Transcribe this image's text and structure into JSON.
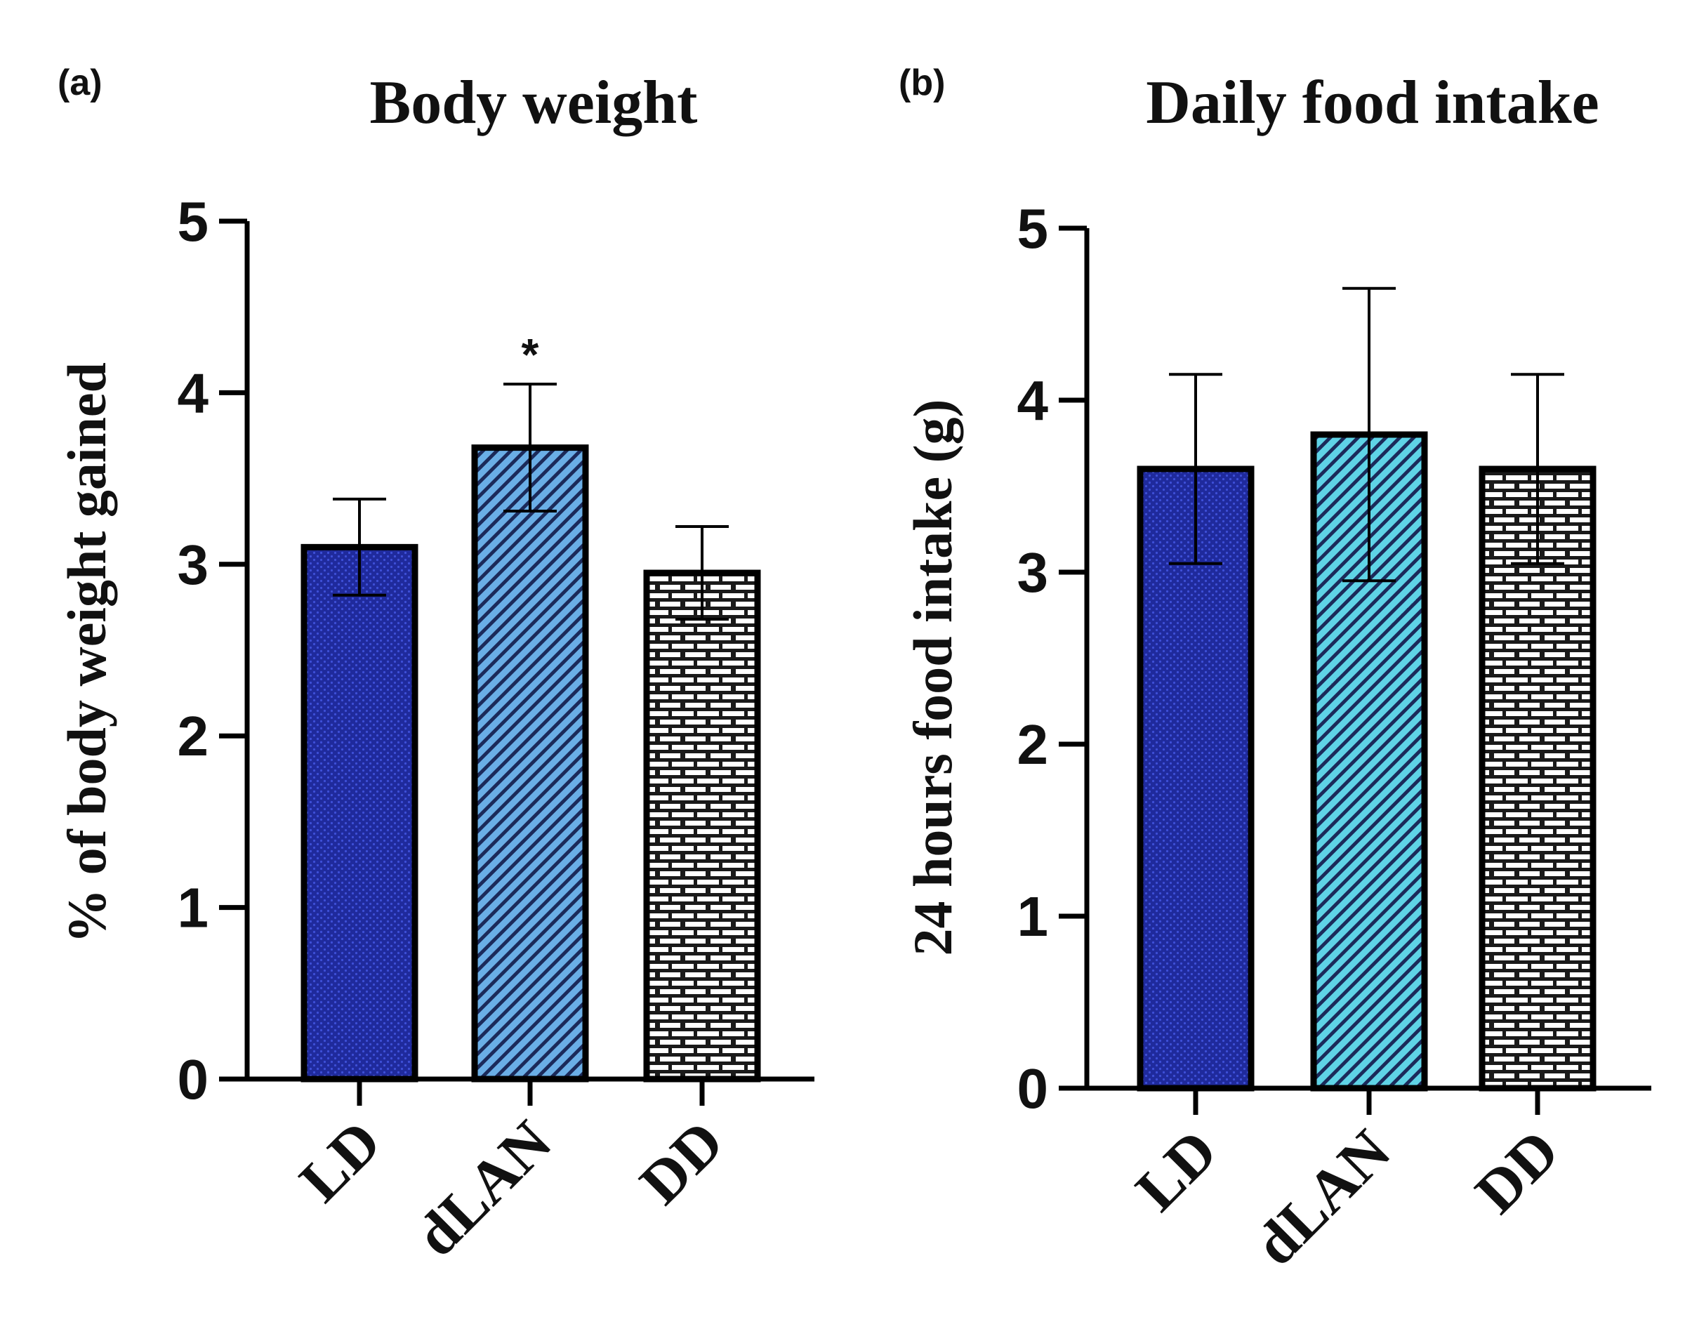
{
  "chart_data": [
    {
      "type": "bar",
      "panel": "(a)",
      "title": "Body weight",
      "xlabel": "",
      "ylabel": "% of body weight gained",
      "ylim": [
        0,
        5
      ],
      "yticks": [
        "0",
        "1",
        "2",
        "3",
        "4",
        "5"
      ],
      "categories": [
        "LD",
        "dLAN",
        "DD"
      ],
      "values": [
        3.1,
        3.68,
        2.95
      ],
      "errors": [
        0.28,
        0.37,
        0.27
      ],
      "significance": [
        "",
        "*",
        ""
      ],
      "fills": [
        "#1f2a9c",
        "#6aaee6",
        "#ffffff"
      ],
      "patterns": [
        "dots",
        "stripes",
        "bricks"
      ]
    },
    {
      "type": "bar",
      "panel": "(b)",
      "title": "Daily food intake",
      "xlabel": "",
      "ylabel": "24 hours food intake (g)",
      "ylim": [
        0,
        5
      ],
      "yticks": [
        "0",
        "1",
        "2",
        "3",
        "4",
        "5"
      ],
      "categories": [
        "LD",
        "dLAN",
        "DD"
      ],
      "values": [
        3.6,
        3.8,
        3.6
      ],
      "errors": [
        0.55,
        0.85,
        0.55
      ],
      "significance": [
        "",
        "",
        ""
      ],
      "fills": [
        "#1f2a9c",
        "#5fd3e6",
        "#ffffff"
      ],
      "patterns": [
        "dots",
        "stripes",
        "bricks"
      ]
    }
  ]
}
